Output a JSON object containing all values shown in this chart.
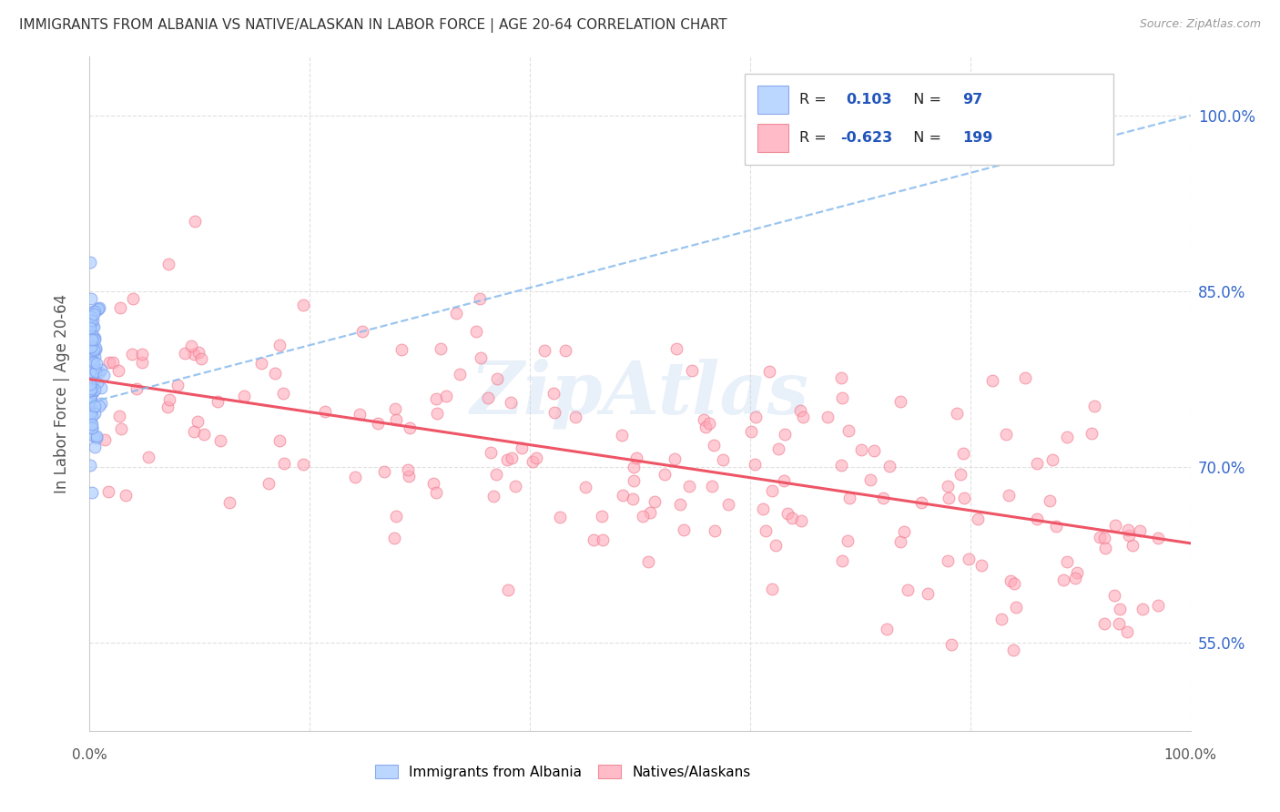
{
  "title": "IMMIGRANTS FROM ALBANIA VS NATIVE/ALASKAN IN LABOR FORCE | AGE 20-64 CORRELATION CHART",
  "source": "Source: ZipAtlas.com",
  "ylabel": "In Labor Force | Age 20-64",
  "y_ticks": [
    0.55,
    0.7,
    0.85,
    1.0
  ],
  "y_tick_labels": [
    "55.0%",
    "70.0%",
    "85.0%",
    "100.0%"
  ],
  "xlim": [
    0.0,
    1.0
  ],
  "ylim": [
    0.475,
    1.05
  ],
  "blue_R": "0.103",
  "blue_N": "97",
  "pink_R": "-0.623",
  "pink_N": "199",
  "blue_color": "#aaccff",
  "blue_edge_color": "#7799ee",
  "pink_color": "#ffaabb",
  "pink_edge_color": "#ee7788",
  "blue_trend_color": "#88bbee",
  "pink_trend_color": "#ee5566",
  "label_color": "#2255bb",
  "watermark": "ZipAtlas",
  "legend_label_blue": "Immigrants from Albania",
  "legend_label_pink": "Natives/Alaskans",
  "title_color": "#333333",
  "source_color": "#999999",
  "ylabel_color": "#555555",
  "grid_color": "#e0e0e0",
  "right_tick_color": "#3366cc",
  "blue_trend_start_y": 0.755,
  "blue_trend_end_y": 1.0,
  "pink_trend_start_y": 0.775,
  "pink_trend_end_y": 0.635
}
